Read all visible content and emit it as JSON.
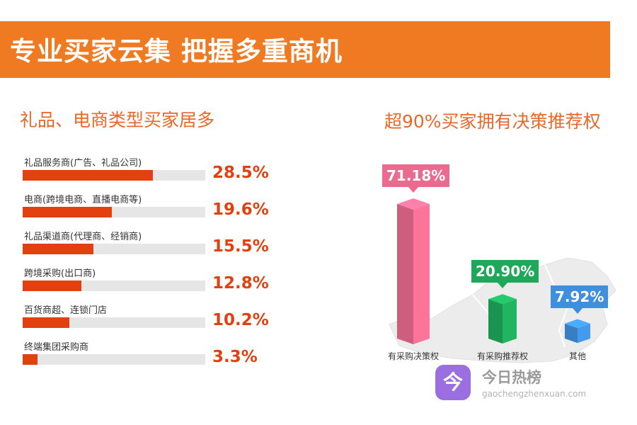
{
  "banner": {
    "title": "专业买家云集  把握多重商机"
  },
  "chart_data": [
    {
      "type": "bar",
      "title": "礼品、电商类型买家居多",
      "categories": [
        "礼品服务商(广告、礼品公司)",
        "电商(跨境电商、直播电商等)",
        "礼品渠道商(代理商、经销商)",
        "跨境采购(出口商)",
        "百货商超、连锁门店",
        "终端集团采购商"
      ],
      "values": [
        28.5,
        19.6,
        15.5,
        12.8,
        10.2,
        3.3
      ],
      "value_labels": [
        "28.5%",
        "19.6%",
        "15.5%",
        "12.8%",
        "10.2%",
        "3.3%"
      ],
      "unit": "%",
      "colors": {
        "bar": "#e2400f",
        "track": "#e6e6e6",
        "value": "#e2400f"
      }
    },
    {
      "type": "bar",
      "title": "超90%买家拥有决策推荐权",
      "categories": [
        "有采购决策权",
        "有采购推荐权",
        "其他"
      ],
      "values": [
        71.18,
        20.9,
        7.92
      ],
      "value_labels": [
        "71.18%",
        "20.90%",
        "7.92%"
      ],
      "unit": "%",
      "colors": [
        "#e96b8f",
        "#1fa85a",
        "#3f8fdc"
      ]
    }
  ],
  "watermark": {
    "name": "今日热榜",
    "icon_glyph": "今",
    "url": "gaochengzhenxuan.com"
  },
  "colors": {
    "banner": "#f07a22",
    "section_title": "#e8682a"
  }
}
